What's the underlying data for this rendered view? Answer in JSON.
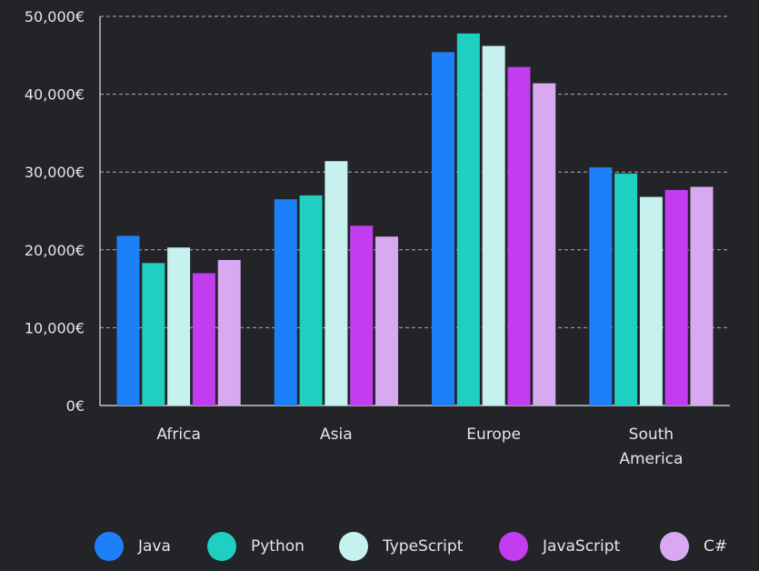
{
  "chart_data": {
    "type": "bar",
    "title": "",
    "xlabel": "",
    "ylabel": "",
    "categories": [
      [
        "Africa"
      ],
      [
        "Asia"
      ],
      [
        "Europe"
      ],
      [
        "South",
        "America"
      ]
    ],
    "series": [
      {
        "name": "Java",
        "color": "#1e80f8",
        "values": [
          21800,
          26500,
          45400,
          30600
        ]
      },
      {
        "name": "Python",
        "color": "#1fcfc1",
        "values": [
          18300,
          27000,
          47800,
          29800
        ]
      },
      {
        "name": "TypeScript",
        "color": "#c6f1ee",
        "values": [
          20300,
          31400,
          46200,
          26800
        ]
      },
      {
        "name": "JavaScript",
        "color": "#c23cf0",
        "values": [
          17000,
          23100,
          43500,
          27700
        ]
      },
      {
        "name": "C#",
        "color": "#d8a9f0",
        "values": [
          18700,
          21700,
          41400,
          28100
        ]
      }
    ],
    "ylim": [
      0,
      50000
    ],
    "yticks": [
      "0€",
      "10,000€",
      "20,000€",
      "30,000€",
      "40,000€",
      "50,000€"
    ],
    "grid": true,
    "legend_position": "bottom"
  }
}
